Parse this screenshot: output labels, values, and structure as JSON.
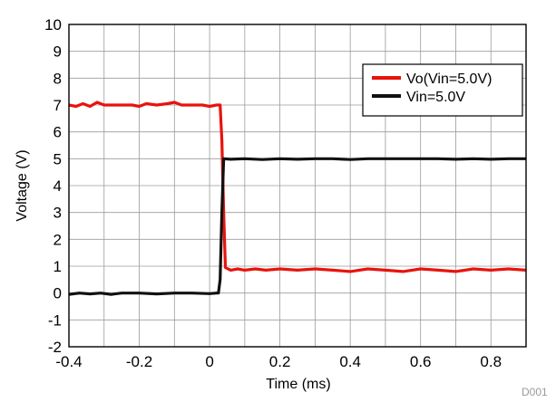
{
  "chart_data": {
    "type": "line",
    "xlabel": "Time (ms)",
    "ylabel": "Voltage (V)",
    "xlim": [
      -0.4,
      0.9
    ],
    "ylim": [
      -2,
      10
    ],
    "x_ticks": [
      "-0.4",
      "-0.2",
      "0",
      "0.2",
      "0.4",
      "0.6",
      "0.8"
    ],
    "x_tick_values": [
      -0.4,
      -0.2,
      0,
      0.2,
      0.4,
      0.6,
      0.8
    ],
    "y_ticks": [
      "-2",
      "-1",
      "0",
      "1",
      "2",
      "3",
      "4",
      "5",
      "6",
      "7",
      "8",
      "9",
      "10"
    ],
    "y_tick_values": [
      -2,
      -1,
      0,
      1,
      2,
      3,
      4,
      5,
      6,
      7,
      8,
      9,
      10
    ],
    "grid": true,
    "legend_position": "top-right",
    "footnote": "D001",
    "series": [
      {
        "name": "Vo(Vin=5.0V)",
        "color": "#e8130c",
        "x": [
          -0.4,
          -0.38,
          -0.36,
          -0.34,
          -0.32,
          -0.3,
          -0.28,
          -0.25,
          -0.22,
          -0.2,
          -0.18,
          -0.15,
          -0.12,
          -0.1,
          -0.08,
          -0.05,
          -0.02,
          0.0,
          0.02,
          0.03,
          0.035,
          0.04,
          0.045,
          0.06,
          0.08,
          0.1,
          0.13,
          0.16,
          0.2,
          0.25,
          0.3,
          0.35,
          0.4,
          0.45,
          0.5,
          0.55,
          0.6,
          0.65,
          0.7,
          0.75,
          0.8,
          0.85,
          0.9
        ],
        "y": [
          7.0,
          6.95,
          7.05,
          6.95,
          7.1,
          7.0,
          7.0,
          7.0,
          7.0,
          6.95,
          7.05,
          7.0,
          7.05,
          7.1,
          7.0,
          7.0,
          7.0,
          6.95,
          7.0,
          7.0,
          5.7,
          3.0,
          0.95,
          0.85,
          0.9,
          0.85,
          0.9,
          0.85,
          0.9,
          0.85,
          0.9,
          0.85,
          0.8,
          0.9,
          0.85,
          0.8,
          0.9,
          0.85,
          0.8,
          0.9,
          0.85,
          0.9,
          0.85
        ]
      },
      {
        "name": "Vin=5.0V",
        "color": "#111111",
        "x": [
          -0.4,
          -0.37,
          -0.34,
          -0.31,
          -0.28,
          -0.25,
          -0.2,
          -0.15,
          -0.1,
          -0.05,
          0.0,
          0.02,
          0.025,
          0.03,
          0.035,
          0.04,
          0.06,
          0.1,
          0.15,
          0.2,
          0.25,
          0.3,
          0.35,
          0.4,
          0.45,
          0.5,
          0.55,
          0.6,
          0.65,
          0.7,
          0.75,
          0.8,
          0.85,
          0.9
        ],
        "y": [
          -0.05,
          0.0,
          -0.03,
          0.0,
          -0.05,
          0.0,
          0.0,
          -0.03,
          0.0,
          0.0,
          -0.02,
          0.0,
          0.0,
          0.5,
          3.0,
          5.0,
          4.98,
          5.0,
          4.97,
          5.0,
          4.98,
          5.0,
          5.0,
          4.97,
          5.0,
          5.0,
          5.0,
          5.0,
          5.0,
          4.98,
          5.0,
          4.98,
          5.0,
          5.0
        ]
      }
    ]
  }
}
